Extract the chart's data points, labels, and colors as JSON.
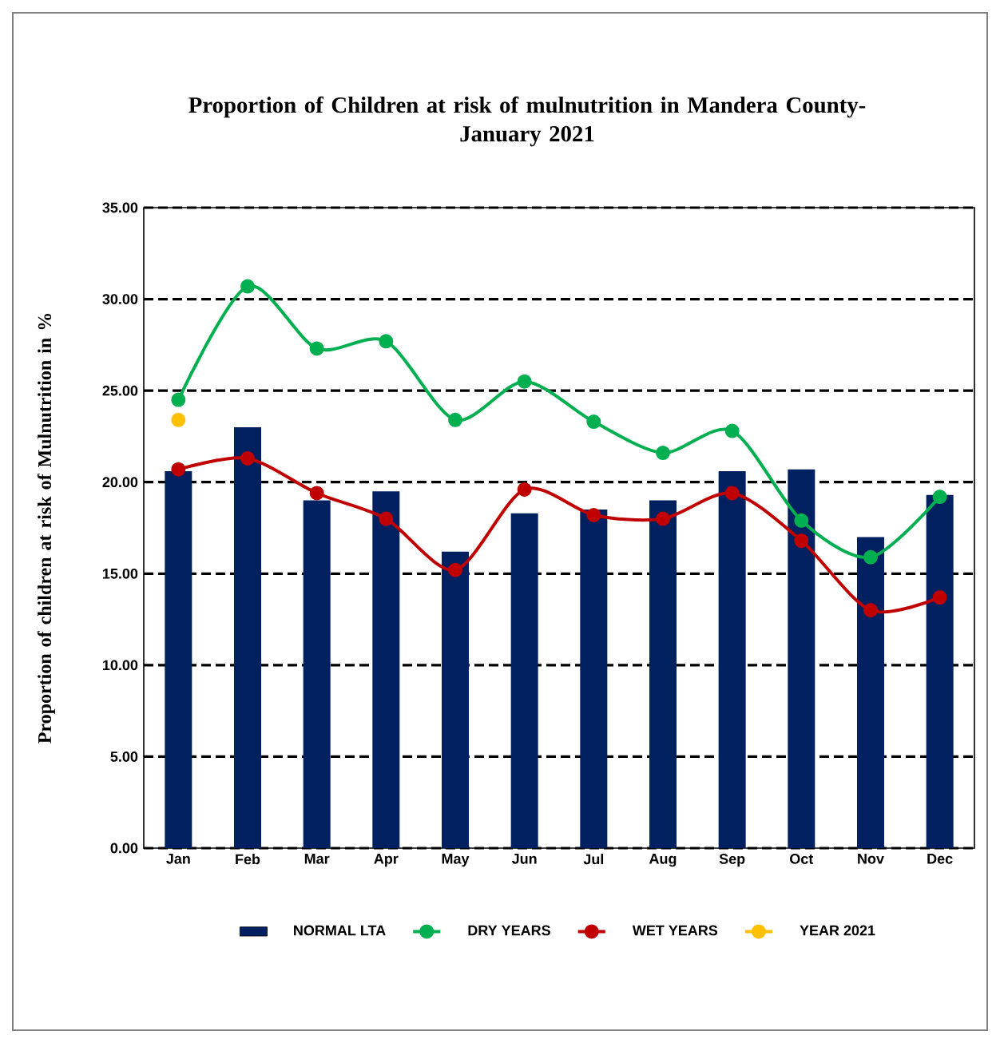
{
  "chart_data": {
    "type": "bar",
    "title": "Proportion of Children at risk of mulnutrition in Mandera County-\nJanuary 2021",
    "ylabel": "Proportion of children at risk of Mulnutrition in %",
    "categories": [
      "Jan",
      "Feb",
      "Mar",
      "Apr",
      "May",
      "Jun",
      "Jul",
      "Aug",
      "Sep",
      "Oct",
      "Nov",
      "Dec"
    ],
    "series": [
      {
        "name": "NORMAL LTA",
        "color": "#002060",
        "values": [
          20.6,
          23.0,
          19.0,
          19.5,
          16.2,
          18.3,
          18.5,
          19.0,
          20.6,
          20.7,
          17.0,
          19.3
        ]
      },
      {
        "name": "DRY YEARS",
        "type": "line",
        "color": "#00b050",
        "values": [
          24.5,
          30.7,
          27.3,
          27.7,
          23.4,
          25.5,
          23.3,
          21.6,
          22.8,
          17.9,
          15.9,
          19.2
        ]
      },
      {
        "name": "WET YEARS",
        "type": "line",
        "color": "#c00000",
        "values": [
          20.7,
          21.3,
          19.4,
          18.0,
          15.2,
          19.6,
          18.2,
          18.0,
          19.4,
          16.8,
          13.0,
          13.7
        ]
      },
      {
        "name": "YEAR 2021",
        "type": "line",
        "color": "#ffc000",
        "values": [
          23.4,
          null,
          null,
          null,
          null,
          null,
          null,
          null,
          null,
          null,
          null,
          null
        ]
      }
    ],
    "ylim": [
      0,
      35
    ],
    "yticks": [
      {
        "value": 0,
        "label": "0.00"
      },
      {
        "value": 5,
        "label": "5.00"
      },
      {
        "value": 10,
        "label": "10.00"
      },
      {
        "value": 15,
        "label": "15.00"
      },
      {
        "value": 20,
        "label": "20.00"
      },
      {
        "value": 25,
        "label": "25.00"
      },
      {
        "value": 30,
        "label": "30.00"
      },
      {
        "value": 35,
        "label": "35.00"
      }
    ],
    "grid": "y",
    "legend": "bottom",
    "marker": "circle"
  }
}
